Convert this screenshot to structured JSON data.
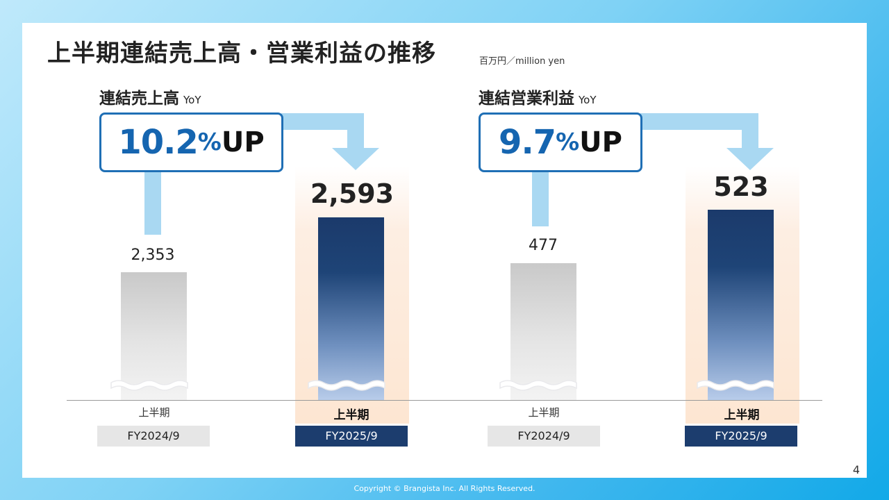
{
  "title": "上半期連結売上高・営業利益の推移",
  "unit_label": "百万円／million yen",
  "page_number": "4",
  "copyright": "Copyright © Brangista Inc. All Rights Reserved.",
  "colors": {
    "accent_blue": "#1565b0",
    "current_bar_top": "#1b3a6b",
    "previous_bar": "#c9c9c9",
    "arrow": "#a9d8f2",
    "highlight": "#fde6d2"
  },
  "panels": [
    {
      "label": "連結売上高",
      "yoy_label": "YoY",
      "growth_number": "10.2",
      "growth_pct": "%",
      "growth_up": "UP",
      "previous": {
        "value_label": "2,353",
        "period": "上半期",
        "fiscal_year": "FY2024/9"
      },
      "current": {
        "value_label": "2,593",
        "period": "上半期",
        "fiscal_year": "FY2025/9"
      }
    },
    {
      "label": "連結営業利益",
      "yoy_label": "YoY",
      "growth_number": "9.7",
      "growth_pct": "%",
      "growth_up": "UP",
      "previous": {
        "value_label": "477",
        "period": "上半期",
        "fiscal_year": "FY2024/9"
      },
      "current": {
        "value_label": "523",
        "period": "上半期",
        "fiscal_year": "FY2025/9"
      }
    }
  ],
  "chart_data": [
    {
      "type": "bar",
      "categories": [
        "FY2024/9 上半期",
        "FY2025/9 上半期"
      ],
      "values": [
        2353,
        2593
      ],
      "title": "連結売上高",
      "unit": "百万円／million yen",
      "yoy_change_pct": 10.2,
      "axis_break": true
    },
    {
      "type": "bar",
      "categories": [
        "FY2024/9 上半期",
        "FY2025/9 上半期"
      ],
      "values": [
        477,
        523
      ],
      "title": "連結営業利益",
      "unit": "百万円／million yen",
      "yoy_change_pct": 9.7,
      "axis_break": true
    }
  ]
}
